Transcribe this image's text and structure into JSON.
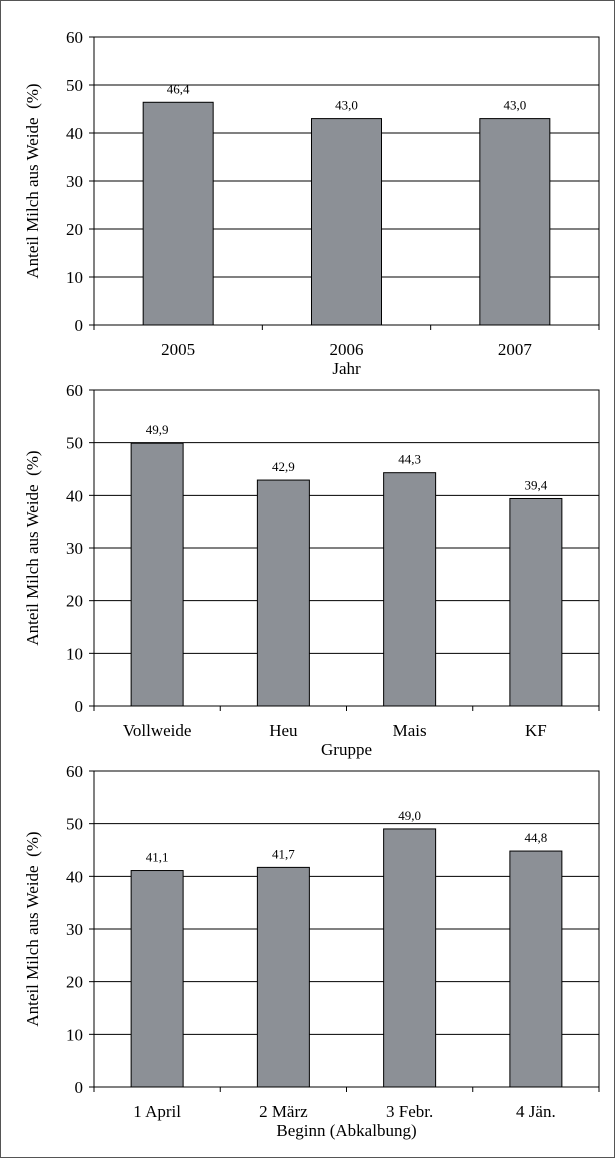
{
  "chart_data": [
    {
      "type": "bar",
      "categories": [
        "2005",
        "2006",
        "2007"
      ],
      "values": [
        46.4,
        43.0,
        43.0
      ],
      "value_labels": [
        "46,4",
        "43,0",
        "43,0"
      ],
      "xlabel": "Jahr",
      "ylabel": "Anteil Milch aus Weide  (%)",
      "ylim": [
        0,
        60
      ],
      "yticks": [
        0,
        10,
        20,
        30,
        40,
        50,
        60
      ],
      "grid": true,
      "bar_color": "#8c9096"
    },
    {
      "type": "bar",
      "categories": [
        "Vollweide",
        "Heu",
        "Mais",
        "KF"
      ],
      "values": [
        49.9,
        42.9,
        44.3,
        39.4
      ],
      "value_labels": [
        "49,9",
        "42,9",
        "44,3",
        "39,4"
      ],
      "xlabel": "Gruppe",
      "ylabel": "Anteil Milch aus Weide  (%)",
      "ylim": [
        0,
        60
      ],
      "yticks": [
        0,
        10,
        20,
        30,
        40,
        50,
        60
      ],
      "grid": true,
      "bar_color": "#8c9096"
    },
    {
      "type": "bar",
      "categories": [
        "1 April",
        "2 März",
        "3 Febr.",
        "4 Jän."
      ],
      "values": [
        41.1,
        41.7,
        49.0,
        44.8
      ],
      "value_labels": [
        "41,1",
        "41,7",
        "49,0",
        "44,8"
      ],
      "xlabel": "Beginn (Abkalbung)",
      "ylabel": "Anteil Milch aus Weide  (%)",
      "ylim": [
        0,
        60
      ],
      "yticks": [
        0,
        10,
        20,
        30,
        40,
        50,
        60
      ],
      "grid": true,
      "bar_color": "#8c9096"
    }
  ]
}
